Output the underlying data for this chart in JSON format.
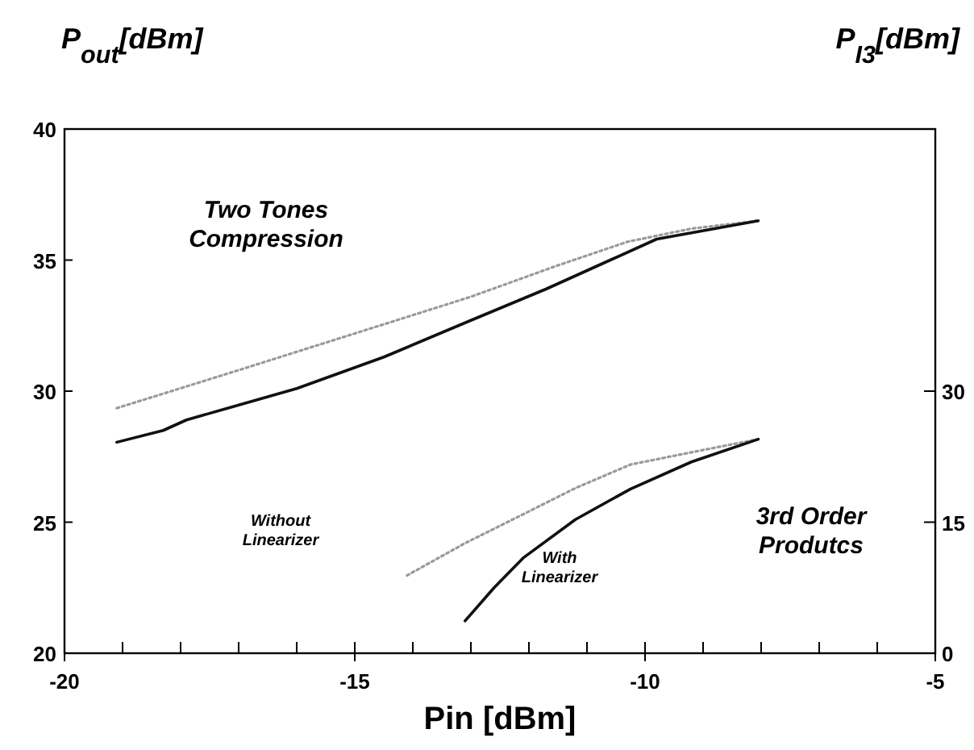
{
  "chart_data": {
    "type": "line",
    "xlabel": "Pin [dBm]",
    "ylabel": "P$_{out}$[dBm]",
    "y2label": "P$_{I3}$[dBm]",
    "xlim": [
      -20,
      -5
    ],
    "xticks": [
      -20,
      -15,
      -10,
      -5
    ],
    "ylim": [
      20,
      40
    ],
    "yticks": [
      20,
      25,
      30,
      35,
      40
    ],
    "y2lim": [
      0,
      60
    ],
    "y2ticks": [
      0,
      15,
      30
    ],
    "grid": false,
    "marker": "none",
    "series": [
      {
        "x": [
          -19.1,
          -17,
          -15,
          -13,
          -11.5,
          -10.3,
          -9.2,
          -8.05
        ],
        "values": [
          29.35,
          30.8,
          32.2,
          33.6,
          34.8,
          35.7,
          36.2,
          36.5
        ],
        "color": "#9a9a9a",
        "line_style": "dotted"
      },
      {
        "x": [
          -19.1,
          -18.3,
          -17.9,
          -16,
          -14.5,
          -13,
          -11.7,
          -10.6,
          -9.8,
          -8.05
        ],
        "values": [
          28.05,
          28.5,
          28.9,
          30.1,
          31.3,
          32.7,
          33.9,
          35.0,
          35.8,
          36.5
        ],
        "color": "#111111",
        "line_style": "solid"
      },
      {
        "x": [
          -14.1,
          -13.1,
          -12.1,
          -11.2,
          -10.25,
          -9.2,
          -8.05
        ],
        "values": [
          8.9,
          12.6,
          15.9,
          18.9,
          21.6,
          23.0,
          24.5
        ],
        "color": "#9a9a9a",
        "line_style": "dotted",
        "axis": "y2"
      },
      {
        "x": [
          -13.1,
          -12.6,
          -12.1,
          -11.2,
          -10.25,
          -9.2,
          -8.05
        ],
        "values": [
          3.7,
          7.5,
          10.9,
          15.3,
          18.8,
          21.9,
          24.5
        ],
        "color": "#111111",
        "line_style": "solid",
        "axis": "y2"
      }
    ],
    "annotations": [
      "Two Tones\nCompression",
      "3rd Order\nProdutcs",
      "Without\nLinearizer",
      "With\nLinearizer"
    ]
  }
}
